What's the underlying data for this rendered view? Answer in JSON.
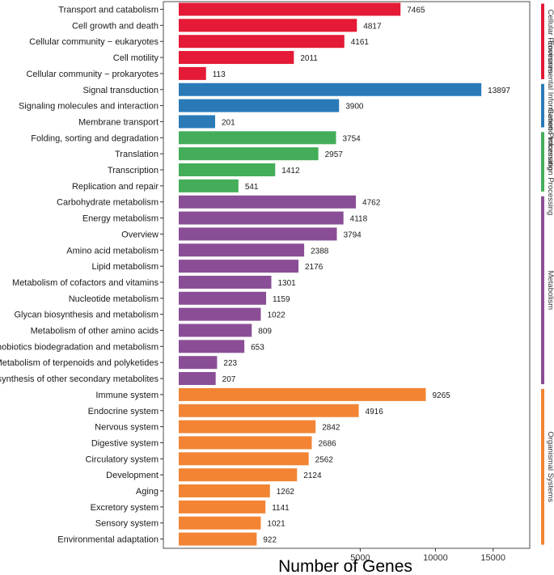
{
  "chart_data": {
    "type": "bar",
    "orientation": "horizontal",
    "xlabel": "Number of Genes",
    "ylabel": "",
    "title": "",
    "x_ticks": [
      5000,
      10000,
      15000
    ],
    "grid": false,
    "legend_placement": "right",
    "groups": [
      {
        "name": "Cellular Processes",
        "color": "#e41a36"
      },
      {
        "name": "Environmental Information Processing",
        "color": "#2a7ab8"
      },
      {
        "name": "Genetic Information Processing",
        "color": "#44ad5a"
      },
      {
        "name": "Metabolism",
        "color": "#8a4e96"
      },
      {
        "name": "Organismal Systems",
        "color": "#f28433"
      }
    ],
    "bars": [
      {
        "label": "Transport and catabolism",
        "value": 7465,
        "group": 0
      },
      {
        "label": "Cell growth and death",
        "value": 4817,
        "group": 0
      },
      {
        "label": "Cellular community − eukaryotes",
        "value": 4161,
        "group": 0
      },
      {
        "label": "Cell motility",
        "value": 2011,
        "group": 0
      },
      {
        "label": "Cellular community − prokaryotes",
        "value": 113,
        "group": 0
      },
      {
        "label": "Signal transduction",
        "value": 13897,
        "group": 1
      },
      {
        "label": "Signaling molecules and interaction",
        "value": 3900,
        "group": 1
      },
      {
        "label": "Membrane transport",
        "value": 201,
        "group": 1
      },
      {
        "label": "Folding, sorting and degradation",
        "value": 3754,
        "group": 2
      },
      {
        "label": "Translation",
        "value": 2957,
        "group": 2
      },
      {
        "label": "Transcription",
        "value": 1412,
        "group": 2
      },
      {
        "label": "Replication and repair",
        "value": 541,
        "group": 2
      },
      {
        "label": "Carbohydrate metabolism",
        "value": 4762,
        "group": 3
      },
      {
        "label": "Energy metabolism",
        "value": 4118,
        "group": 3
      },
      {
        "label": "Overview",
        "value": 3794,
        "group": 3
      },
      {
        "label": "Amino acid metabolism",
        "value": 2388,
        "group": 3
      },
      {
        "label": "Lipid metabolism",
        "value": 2176,
        "group": 3
      },
      {
        "label": "Metabolism of cofactors and vitamins",
        "value": 1301,
        "group": 3
      },
      {
        "label": "Nucleotide metabolism",
        "value": 1159,
        "group": 3
      },
      {
        "label": "Glycan biosynthesis and metabolism",
        "value": 1022,
        "group": 3
      },
      {
        "label": "Metabolism of other amino acids",
        "value": 809,
        "group": 3
      },
      {
        "label": "Xenobiotics biodegradation and metabolism",
        "value": 653,
        "group": 3
      },
      {
        "label": "Metabolism of terpenoids and polyketides",
        "value": 223,
        "group": 3
      },
      {
        "label": "Biosynthesis of other secondary metabolites",
        "value": 207,
        "group": 3
      },
      {
        "label": "Immune system",
        "value": 9265,
        "group": 4
      },
      {
        "label": "Endocrine system",
        "value": 4916,
        "group": 4
      },
      {
        "label": "Nervous system",
        "value": 2842,
        "group": 4
      },
      {
        "label": "Digestive system",
        "value": 2686,
        "group": 4
      },
      {
        "label": "Circulatory system",
        "value": 2562,
        "group": 4
      },
      {
        "label": "Development",
        "value": 2124,
        "group": 4
      },
      {
        "label": "Aging",
        "value": 1262,
        "group": 4
      },
      {
        "label": "Excretory system",
        "value": 1141,
        "group": 4
      },
      {
        "label": "Sensory system",
        "value": 1021,
        "group": 4
      },
      {
        "label": "Environmental adaptation",
        "value": 922,
        "group": 4
      }
    ]
  }
}
